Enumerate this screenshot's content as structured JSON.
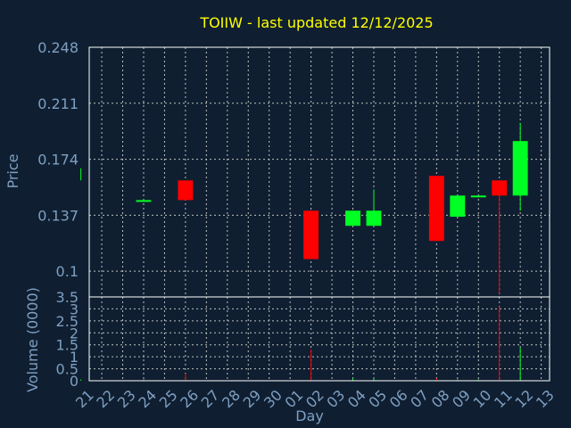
{
  "colors": {
    "background": "#0f1f31",
    "axis": "#ffffff",
    "grid": "#bfbfbf",
    "title": "#ffff00",
    "label": "#7f9fc2",
    "up": "#00ff22",
    "down": "#ff0000"
  },
  "chart_data": {
    "type": "candlestick",
    "title": "TOIIW - last updated 12/12/2025",
    "xlabel": "Day",
    "price": {
      "ylabel": "Price",
      "ylim": [
        0.083,
        0.248
      ],
      "yticks": [
        "0.248",
        "0.211",
        "0.174",
        "0.137",
        "0.1"
      ],
      "ytick_values": [
        0.248,
        0.211,
        0.174,
        0.137,
        0.1
      ],
      "grid": true
    },
    "volume": {
      "ylabel": "Volume (0000)",
      "ylim": [
        0,
        3.5
      ],
      "yticks": [
        "3.5",
        "3",
        "2.5",
        "2",
        "1.5",
        "1",
        "0.5",
        "0"
      ],
      "ytick_values": [
        3.5,
        3,
        2.5,
        2,
        1.5,
        1,
        0.5,
        0
      ],
      "grid": true
    },
    "categories": [
      "21",
      "22",
      "23",
      "24",
      "25",
      "26",
      "27",
      "28",
      "29",
      "30",
      "01",
      "02",
      "03",
      "04",
      "05",
      "06",
      "07",
      "08",
      "09",
      "10",
      "11",
      "12",
      "13"
    ],
    "candles": [
      {
        "day": "21",
        "open": 0.16,
        "high": 0.168,
        "low": 0.16,
        "close": 0.168,
        "volume": 0.05
      },
      {
        "day": "24",
        "open": 0.146,
        "high": 0.147,
        "low": 0.146,
        "close": 0.147,
        "volume": 0.05
      },
      {
        "day": "26",
        "open": 0.16,
        "high": 0.16,
        "low": 0.147,
        "close": 0.147,
        "volume": 0.3
      },
      {
        "day": "02",
        "open": 0.14,
        "high": 0.14,
        "low": 0.108,
        "close": 0.108,
        "volume": 1.3
      },
      {
        "day": "04",
        "open": 0.13,
        "high": 0.14,
        "low": 0.13,
        "close": 0.14,
        "volume": 0.1
      },
      {
        "day": "05",
        "open": 0.13,
        "high": 0.154,
        "low": 0.13,
        "close": 0.14,
        "volume": 0.1
      },
      {
        "day": "08",
        "open": 0.163,
        "high": 0.163,
        "low": 0.12,
        "close": 0.12,
        "volume": 0.1
      },
      {
        "day": "09",
        "open": 0.136,
        "high": 0.15,
        "low": 0.136,
        "close": 0.15,
        "volume": 0.05
      },
      {
        "day": "10",
        "open": 0.149,
        "high": 0.15,
        "low": 0.149,
        "close": 0.15,
        "volume": 0.05
      },
      {
        "day": "11",
        "open": 0.16,
        "high": 0.16,
        "low": 0.085,
        "close": 0.15,
        "volume": 3.1
      },
      {
        "day": "12",
        "open": 0.15,
        "high": 0.198,
        "low": 0.14,
        "close": 0.186,
        "volume": 1.4
      }
    ]
  }
}
